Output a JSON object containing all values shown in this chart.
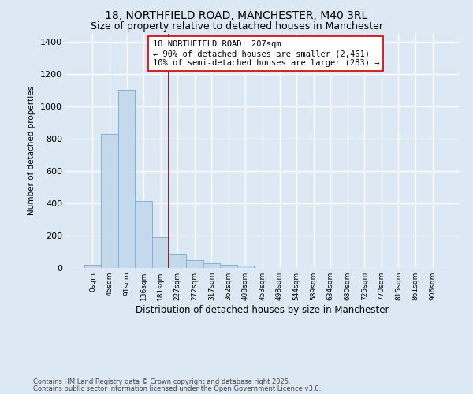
{
  "title1": "18, NORTHFIELD ROAD, MANCHESTER, M40 3RL",
  "title2": "Size of property relative to detached houses in Manchester",
  "xlabel": "Distribution of detached houses by size in Manchester",
  "ylabel": "Number of detached properties",
  "bar_labels": [
    "0sqm",
    "45sqm",
    "91sqm",
    "136sqm",
    "181sqm",
    "227sqm",
    "272sqm",
    "317sqm",
    "362sqm",
    "408sqm",
    "453sqm",
    "498sqm",
    "544sqm",
    "589sqm",
    "634sqm",
    "680sqm",
    "725sqm",
    "770sqm",
    "815sqm",
    "861sqm",
    "906sqm"
  ],
  "bar_values": [
    20,
    830,
    1100,
    415,
    190,
    90,
    50,
    30,
    20,
    15,
    0,
    0,
    0,
    0,
    0,
    0,
    0,
    0,
    0,
    0,
    0
  ],
  "bar_color": "#c5d9ec",
  "bar_edge_color": "#7fb3d3",
  "red_line_x": 4.5,
  "annotation_line1": "18 NORTHFIELD ROAD: 207sqm",
  "annotation_line2": "← 90% of detached houses are smaller (2,461)",
  "annotation_line3": "10% of semi-detached houses are larger (283) →",
  "ylim": [
    0,
    1450
  ],
  "footnote1": "Contains HM Land Registry data © Crown copyright and database right 2025.",
  "footnote2": "Contains public sector information licensed under the Open Government Licence v3.0.",
  "bg_color": "#dde8f5",
  "plot_bg_color": "#dde8f5",
  "grid_color": "#ffffff",
  "title_fontsize": 10,
  "subtitle_fontsize": 9
}
